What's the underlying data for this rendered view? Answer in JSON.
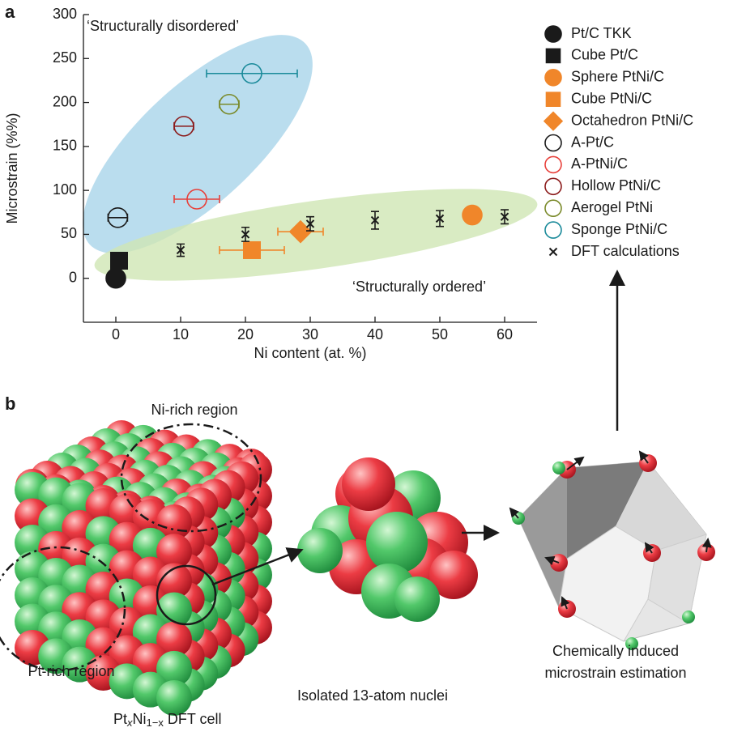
{
  "panel_a": {
    "label": "a"
  },
  "chart_data": {
    "type": "scatter",
    "xlabel": "Ni content (at. %)",
    "ylabel": "Microstrain (%%)",
    "xlim": [
      -5,
      65
    ],
    "xticks": [
      0,
      10,
      20,
      30,
      40,
      50,
      60
    ],
    "ylim": [
      -50,
      300
    ],
    "yticks": [
      0,
      50,
      100,
      150,
      200,
      250,
      300
    ],
    "annotations": [
      {
        "text": "‘Structurally disordered’",
        "color": "#29a3d6"
      },
      {
        "text": "‘Structurally ordered’",
        "color": "#8cc63f"
      }
    ],
    "series": [
      {
        "name": "Pt/C TKK",
        "color": "#1a1a1a",
        "marker": "circle",
        "filled": true,
        "x": [
          0
        ],
        "y": [
          0
        ]
      },
      {
        "name": "Cube Pt/C",
        "color": "#1a1a1a",
        "marker": "square",
        "filled": true,
        "x": [
          0.5
        ],
        "y": [
          20
        ]
      },
      {
        "name": "Sphere PtNi/C",
        "color": "#f0862a",
        "marker": "circle",
        "filled": true,
        "x": [
          55
        ],
        "y": [
          72
        ]
      },
      {
        "name": "Cube PtNi/C",
        "color": "#f0862a",
        "marker": "square",
        "filled": true,
        "x": [
          21
        ],
        "y": [
          32
        ],
        "xerr": [
          5
        ]
      },
      {
        "name": "Octahedron PtNi/C",
        "color": "#f0862a",
        "marker": "diamond",
        "filled": true,
        "x": [
          28.5
        ],
        "y": [
          53
        ],
        "xerr": [
          3.5
        ]
      },
      {
        "name": "A-Pt/C",
        "color": "#1a1a1a",
        "marker": "circle",
        "filled": false,
        "x": [
          0.3
        ],
        "y": [
          69
        ],
        "xerr": [
          1.5
        ]
      },
      {
        "name": "A-PtNi/C",
        "color": "#e8403a",
        "marker": "circle",
        "filled": false,
        "x": [
          12.5
        ],
        "y": [
          90
        ],
        "xerr": [
          3.5
        ]
      },
      {
        "name": "Hollow PtNi/C",
        "color": "#8b1a1a",
        "marker": "circle",
        "filled": false,
        "x": [
          10.5
        ],
        "y": [
          173
        ],
        "xerr": [
          1.5
        ]
      },
      {
        "name": "Aerogel PtNi",
        "color": "#7a8a2a",
        "marker": "circle",
        "filled": false,
        "x": [
          17.5
        ],
        "y": [
          198
        ],
        "xerr": [
          1.5
        ]
      },
      {
        "name": "Sponge PtNi/C",
        "color": "#1a8a9a",
        "marker": "circle",
        "filled": false,
        "x": [
          21
        ],
        "y": [
          233
        ],
        "xerr": [
          7
        ]
      },
      {
        "name": "DFT calculations",
        "color": "#1a1a1a",
        "marker": "x",
        "filled": false,
        "x": [
          10,
          20,
          30,
          40,
          50,
          60
        ],
        "y": [
          32,
          50,
          62,
          66,
          68,
          70
        ],
        "yerr": [
          7,
          8,
          8,
          10,
          9,
          8
        ]
      }
    ]
  },
  "panel_b": {
    "label": "b",
    "ni_rich": "Ni-rich region",
    "pt_rich": "Pt-rich region",
    "nuclei": "Isolated 13-atom nuclei",
    "estimation": [
      "Chemically induced",
      "microstrain estimation"
    ],
    "cell": [
      "Pt",
      "x",
      "Ni",
      "1−x",
      " DFT cell"
    ]
  }
}
